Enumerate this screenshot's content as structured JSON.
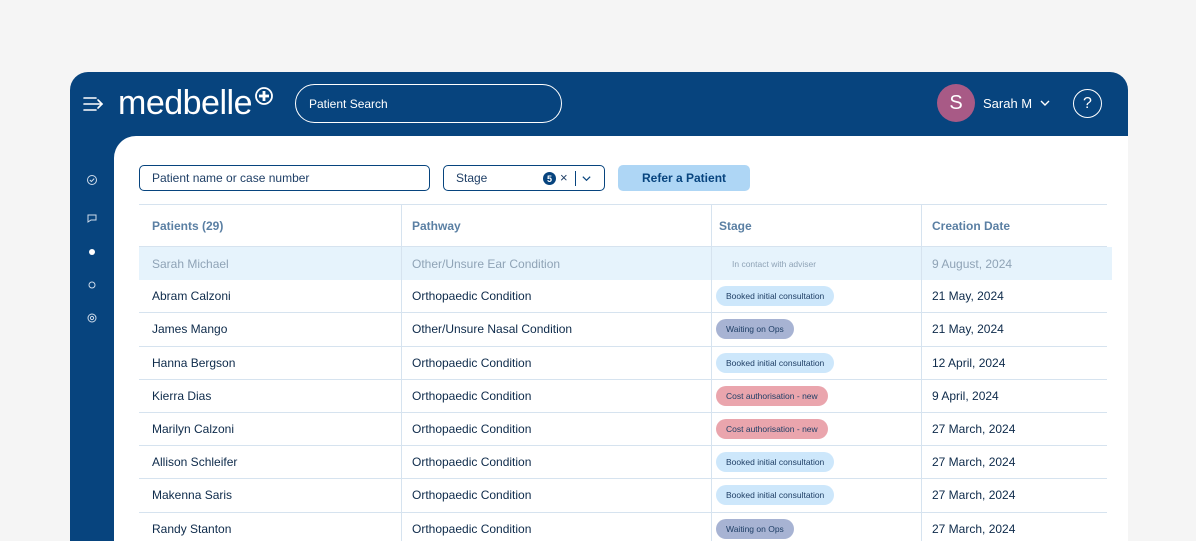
{
  "header": {
    "logo": "medbelle",
    "search_label": "Patient Search",
    "user": {
      "initial": "S",
      "name": "Sarah M"
    },
    "help": "?"
  },
  "sidebar": {
    "icons": [
      "check-circle-icon",
      "chat-icon",
      "dot-icon",
      "search-icon",
      "settings-icon"
    ]
  },
  "filters": {
    "name_placeholder": "Patient name or case number",
    "stage_label": "Stage",
    "stage_count": "5",
    "stage_clear": "×",
    "refer_button": "Refer a Patient"
  },
  "table": {
    "columns": [
      "Patients (29)",
      "Pathway",
      "Stage",
      "Creation Date"
    ],
    "rows": [
      {
        "name": "Sarah Michael",
        "pathway": "Other/Unsure Ear Condition",
        "stage": "In contact with adviser",
        "stage_type": "contact",
        "date": "9 August, 2024"
      },
      {
        "name": "Abram Calzoni",
        "pathway": "Orthopaedic Condition",
        "stage": "Booked initial consultation",
        "stage_type": "booked",
        "date": "21 May, 2024"
      },
      {
        "name": "James Mango",
        "pathway": "Other/Unsure Nasal Condition",
        "stage": "Waiting on Ops",
        "stage_type": "waiting",
        "date": "21 May, 2024"
      },
      {
        "name": "Hanna Bergson",
        "pathway": "Orthopaedic Condition",
        "stage": "Booked initial consultation",
        "stage_type": "booked",
        "date": "12 April, 2024"
      },
      {
        "name": "Kierra Dias",
        "pathway": "Orthopaedic Condition",
        "stage": "Cost authorisation - new",
        "stage_type": "cost",
        "date": "9 April, 2024"
      },
      {
        "name": "Marilyn Calzoni",
        "pathway": "Orthopaedic Condition",
        "stage": "Cost authorisation - new",
        "stage_type": "cost",
        "date": "27 March, 2024"
      },
      {
        "name": "Allison Schleifer",
        "pathway": "Orthopaedic Condition",
        "stage": "Booked initial consultation",
        "stage_type": "booked",
        "date": "27 March, 2024"
      },
      {
        "name": "Makenna Saris",
        "pathway": "Orthopaedic Condition",
        "stage": "Booked initial consultation",
        "stage_type": "booked",
        "date": "27 March, 2024"
      },
      {
        "name": "Randy Stanton",
        "pathway": "Orthopaedic Condition",
        "stage": "Waiting on Ops",
        "stage_type": "waiting",
        "date": "27 March, 2024"
      }
    ]
  },
  "colors": {
    "brand": "#07447e",
    "highlight_row": "#e6f3fc",
    "pill_booked": "#cde7fb",
    "pill_waiting": "#a7b3d3",
    "pill_cost": "#eaa5ad",
    "avatar": "#a85a86",
    "refer_button": "#aed6f5"
  }
}
